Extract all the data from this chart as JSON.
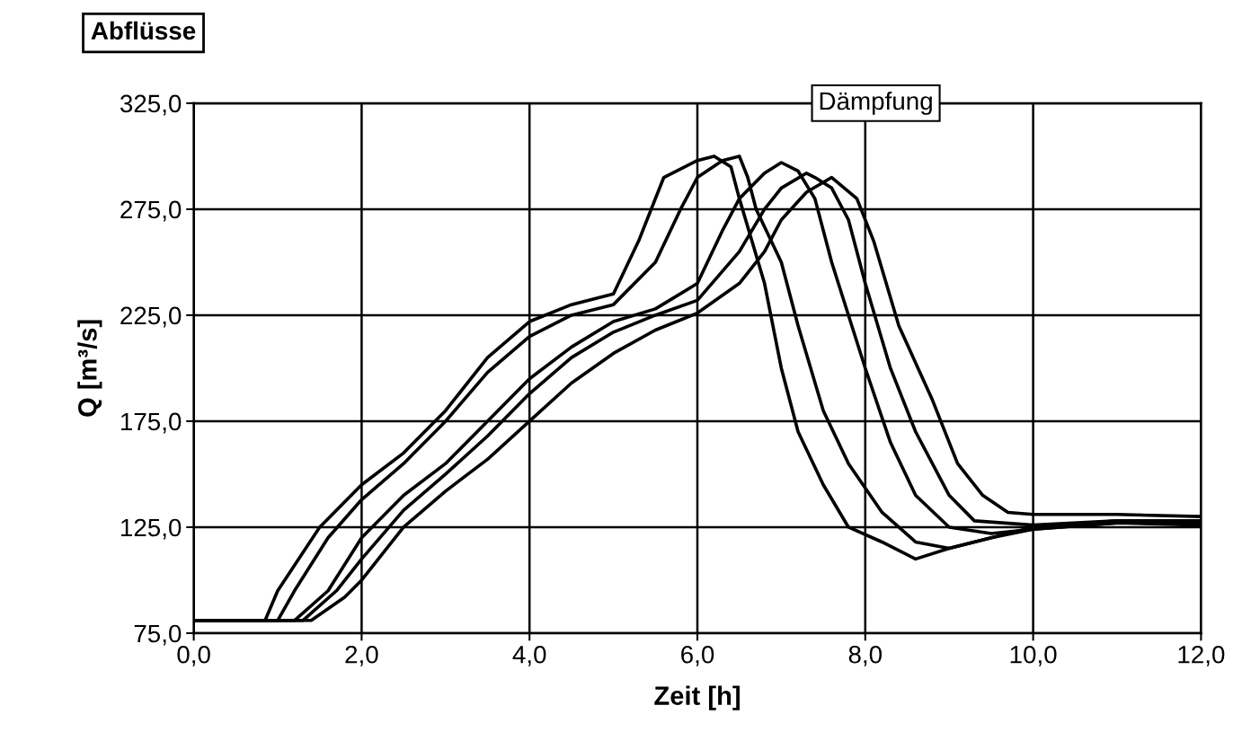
{
  "chart_data": {
    "type": "line",
    "title": "Abflüsse",
    "xlabel": "Zeit [h]",
    "ylabel": "Q [m³/s]",
    "annotations": [
      "Dämpfung"
    ],
    "xlim": [
      0,
      12
    ],
    "ylim": [
      75,
      325
    ],
    "xticks": [
      {
        "value": 0,
        "label": "0,0"
      },
      {
        "value": 2,
        "label": "2,0"
      },
      {
        "value": 4,
        "label": "4,0"
      },
      {
        "value": 6,
        "label": "6,0"
      },
      {
        "value": 8,
        "label": "8,0"
      },
      {
        "value": 10,
        "label": "10,0"
      },
      {
        "value": 12,
        "label": "12,0"
      }
    ],
    "yticks": [
      {
        "value": 75,
        "label": "75,0"
      },
      {
        "value": 125,
        "label": "125,0"
      },
      {
        "value": 175,
        "label": "175,0"
      },
      {
        "value": 225,
        "label": "225,0"
      },
      {
        "value": 275,
        "label": "275,0"
      },
      {
        "value": 325,
        "label": "325,0"
      }
    ],
    "grid": true,
    "marker": "none",
    "line_style": "solid",
    "series": [
      {
        "color": "#000000",
        "x": [
          0,
          0.85,
          1.0,
          1.5,
          2.0,
          2.5,
          3.0,
          3.5,
          4.0,
          4.5,
          5.0,
          5.3,
          5.6,
          6.0,
          6.2,
          6.4,
          6.5,
          6.8,
          7.0,
          7.2,
          7.5,
          7.8,
          8.2,
          8.6,
          9.0,
          9.5,
          10,
          11,
          12
        ],
        "values": [
          81,
          81,
          95,
          125,
          145,
          160,
          180,
          205,
          222,
          230,
          235,
          260,
          290,
          298,
          300,
          295,
          280,
          240,
          200,
          170,
          145,
          125,
          118,
          110,
          115,
          120,
          125,
          128,
          128
        ]
      },
      {
        "color": "#000000",
        "x": [
          0,
          1.0,
          1.2,
          1.6,
          2.0,
          2.5,
          3.0,
          3.5,
          4.0,
          4.5,
          5.0,
          5.5,
          5.8,
          6.0,
          6.3,
          6.5,
          6.6,
          6.7,
          7.0,
          7.2,
          7.5,
          7.8,
          8.2,
          8.6,
          9.0,
          9.5,
          10,
          11,
          12
        ],
        "values": [
          81,
          81,
          95,
          120,
          138,
          155,
          175,
          198,
          215,
          225,
          230,
          250,
          275,
          290,
          298,
          300,
          290,
          275,
          250,
          220,
          180,
          155,
          132,
          118,
          115,
          120,
          124,
          127,
          127
        ]
      },
      {
        "color": "#000000",
        "x": [
          0,
          1.2,
          1.6,
          2.0,
          2.5,
          3.0,
          3.5,
          4.0,
          4.5,
          5.0,
          5.5,
          6.0,
          6.3,
          6.5,
          6.8,
          7.0,
          7.2,
          7.4,
          7.6,
          8.0,
          8.3,
          8.6,
          9.0,
          9.5,
          10,
          11,
          12
        ],
        "values": [
          81,
          81,
          95,
          120,
          140,
          155,
          175,
          195,
          210,
          222,
          228,
          240,
          265,
          280,
          292,
          297,
          293,
          280,
          250,
          200,
          165,
          140,
          125,
          122,
          124,
          127,
          126
        ]
      },
      {
        "color": "#000000",
        "x": [
          0,
          1.3,
          1.7,
          2.0,
          2.5,
          3.0,
          3.5,
          4.0,
          4.5,
          5.0,
          5.5,
          6.0,
          6.5,
          6.8,
          7.0,
          7.3,
          7.4,
          7.6,
          7.8,
          8.0,
          8.3,
          8.6,
          9.0,
          9.3,
          10,
          11,
          12
        ],
        "values": [
          81,
          81,
          95,
          110,
          133,
          150,
          168,
          188,
          205,
          217,
          225,
          232,
          255,
          275,
          285,
          292,
          290,
          285,
          270,
          240,
          200,
          170,
          140,
          128,
          126,
          128,
          126
        ]
      },
      {
        "color": "#000000",
        "x": [
          0,
          1.4,
          1.8,
          2.0,
          2.5,
          3.0,
          3.5,
          4.0,
          4.5,
          5.0,
          5.5,
          6.0,
          6.5,
          6.8,
          7.0,
          7.3,
          7.6,
          7.9,
          8.1,
          8.4,
          8.8,
          9.1,
          9.4,
          9.7,
          10,
          11,
          12
        ],
        "values": [
          81,
          81,
          92,
          100,
          125,
          142,
          157,
          175,
          193,
          207,
          218,
          226,
          240,
          255,
          270,
          283,
          290,
          280,
          260,
          220,
          185,
          155,
          140,
          132,
          131,
          131,
          130
        ]
      }
    ]
  }
}
